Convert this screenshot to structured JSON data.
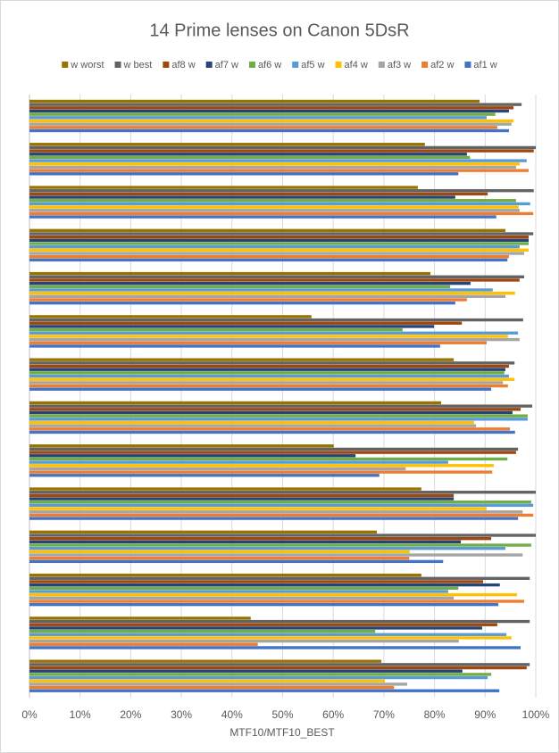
{
  "chart_data": {
    "type": "hbar",
    "title": "14 Prime lenses on Canon 5DsR",
    "x_label": "MTF10/MTF10_BEST",
    "categories": [
      null,
      null,
      null,
      null,
      null,
      null,
      null,
      null,
      null,
      null,
      null,
      null,
      null,
      null
    ],
    "xlim": [
      0,
      100
    ],
    "xticks": [
      {
        "value": 0,
        "label": "0%"
      },
      {
        "value": 10,
        "label": "10%"
      },
      {
        "value": 20,
        "label": "20%"
      },
      {
        "value": 30,
        "label": "30%"
      },
      {
        "value": 40,
        "label": "40%"
      },
      {
        "value": 50,
        "label": "50%"
      },
      {
        "value": 60,
        "label": "60%"
      },
      {
        "value": 70,
        "label": "70%"
      },
      {
        "value": 80,
        "label": "80%"
      },
      {
        "value": 90,
        "label": "90%"
      },
      {
        "value": 100,
        "label": "100%"
      }
    ],
    "grid": true,
    "legend": "top",
    "series": [
      {
        "name": "w worst",
        "color": "#997300",
        "values": [
          88.9,
          78.1,
          76.7,
          94.0,
          79.2,
          55.7,
          83.8,
          81.3,
          60.1,
          77.4,
          68.6,
          77.4,
          43.7,
          69.5
        ]
      },
      {
        "name": "w best",
        "color": "#636363",
        "values": [
          97.2,
          100,
          99.6,
          99.5,
          97.7,
          97.5,
          95.8,
          99.3,
          96.5,
          100,
          100,
          98.8,
          98.8,
          98.8
        ]
      },
      {
        "name": "af8 w",
        "color": "#9e480e",
        "values": [
          95.6,
          99.6,
          90.5,
          98.6,
          96.8,
          85.4,
          94.7,
          97.0,
          96.1,
          83.8,
          91.2,
          89.6,
          92.4,
          98.2
        ]
      },
      {
        "name": "af7 w",
        "color": "#264478",
        "values": [
          94.7,
          86.4,
          84.1,
          98.6,
          87.1,
          79.9,
          94.0,
          95.4,
          64.4,
          83.8,
          85.2,
          92.9,
          89.4,
          85.5
        ]
      },
      {
        "name": "af6 w",
        "color": "#70ad47",
        "values": [
          92.0,
          87.0,
          96.1,
          98.6,
          83.1,
          73.7,
          93.8,
          98.4,
          94.4,
          99.1,
          99.1,
          84.7,
          68.3,
          91.2
        ]
      },
      {
        "name": "af5 w",
        "color": "#5b9bd5",
        "values": [
          90.3,
          98.2,
          98.9,
          96.8,
          91.5,
          96.5,
          94.7,
          98.4,
          82.7,
          99.5,
          94.0,
          82.7,
          94.2,
          90.5
        ]
      },
      {
        "name": "af4 w",
        "color": "#ffc000",
        "values": [
          95.6,
          96.8,
          96.6,
          98.6,
          95.9,
          94.5,
          95.8,
          87.8,
          91.7,
          90.3,
          75.1,
          96.3,
          95.2,
          70.2
        ]
      },
      {
        "name": "af3 w",
        "color": "#a5a5a5",
        "values": [
          95.2,
          96.1,
          96.8,
          97.7,
          94.0,
          96.8,
          93.5,
          88.2,
          74.3,
          97.4,
          97.4,
          83.8,
          84.8,
          74.6
        ]
      },
      {
        "name": "af2 w",
        "color": "#ed7d31",
        "values": [
          92.4,
          98.6,
          99.5,
          94.7,
          86.4,
          90.3,
          94.5,
          94.9,
          91.4,
          99.5,
          75.0,
          97.7,
          45.1,
          72.0
        ]
      },
      {
        "name": "af1 w",
        "color": "#4472c4",
        "values": [
          94.7,
          84.7,
          92.2,
          94.4,
          84.1,
          81.1,
          91.2,
          95.9,
          69.1,
          96.5,
          81.7,
          92.6,
          97.0,
          92.8
        ]
      }
    ]
  }
}
